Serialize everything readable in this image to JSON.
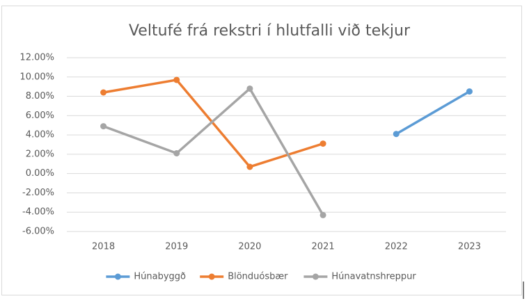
{
  "chart_data": {
    "type": "line",
    "title": "Veltufé frá rekstri í hlutfalli við tekjur",
    "categories": [
      "2018",
      "2019",
      "2020",
      "2021",
      "2022",
      "2023"
    ],
    "series": [
      {
        "name": "Húnabyggð",
        "color": "#5b9bd5",
        "values": [
          null,
          null,
          null,
          null,
          4.1,
          8.5
        ]
      },
      {
        "name": "Blönduósbær",
        "color": "#ed7d31",
        "values": [
          8.4,
          9.7,
          0.7,
          3.1,
          null,
          null
        ]
      },
      {
        "name": "Húnavatnshreppur",
        "color": "#a5a5a5",
        "values": [
          4.9,
          2.1,
          8.8,
          -4.3,
          null,
          null
        ]
      }
    ],
    "ylim": [
      -6,
      12
    ],
    "yticks": [
      {
        "value": -6,
        "label": "-6.00%"
      },
      {
        "value": -4,
        "label": "-4.00%"
      },
      {
        "value": -2,
        "label": "-2.00%"
      },
      {
        "value": 0,
        "label": "0.00%"
      },
      {
        "value": 2,
        "label": "2.00%"
      },
      {
        "value": 4,
        "label": "4.00%"
      },
      {
        "value": 6,
        "label": "6.00%"
      },
      {
        "value": 8,
        "label": "8.00%"
      },
      {
        "value": 10,
        "label": "10.00%"
      },
      {
        "value": 12,
        "label": "12.00%"
      }
    ],
    "grid": true,
    "legend": "bottom"
  }
}
